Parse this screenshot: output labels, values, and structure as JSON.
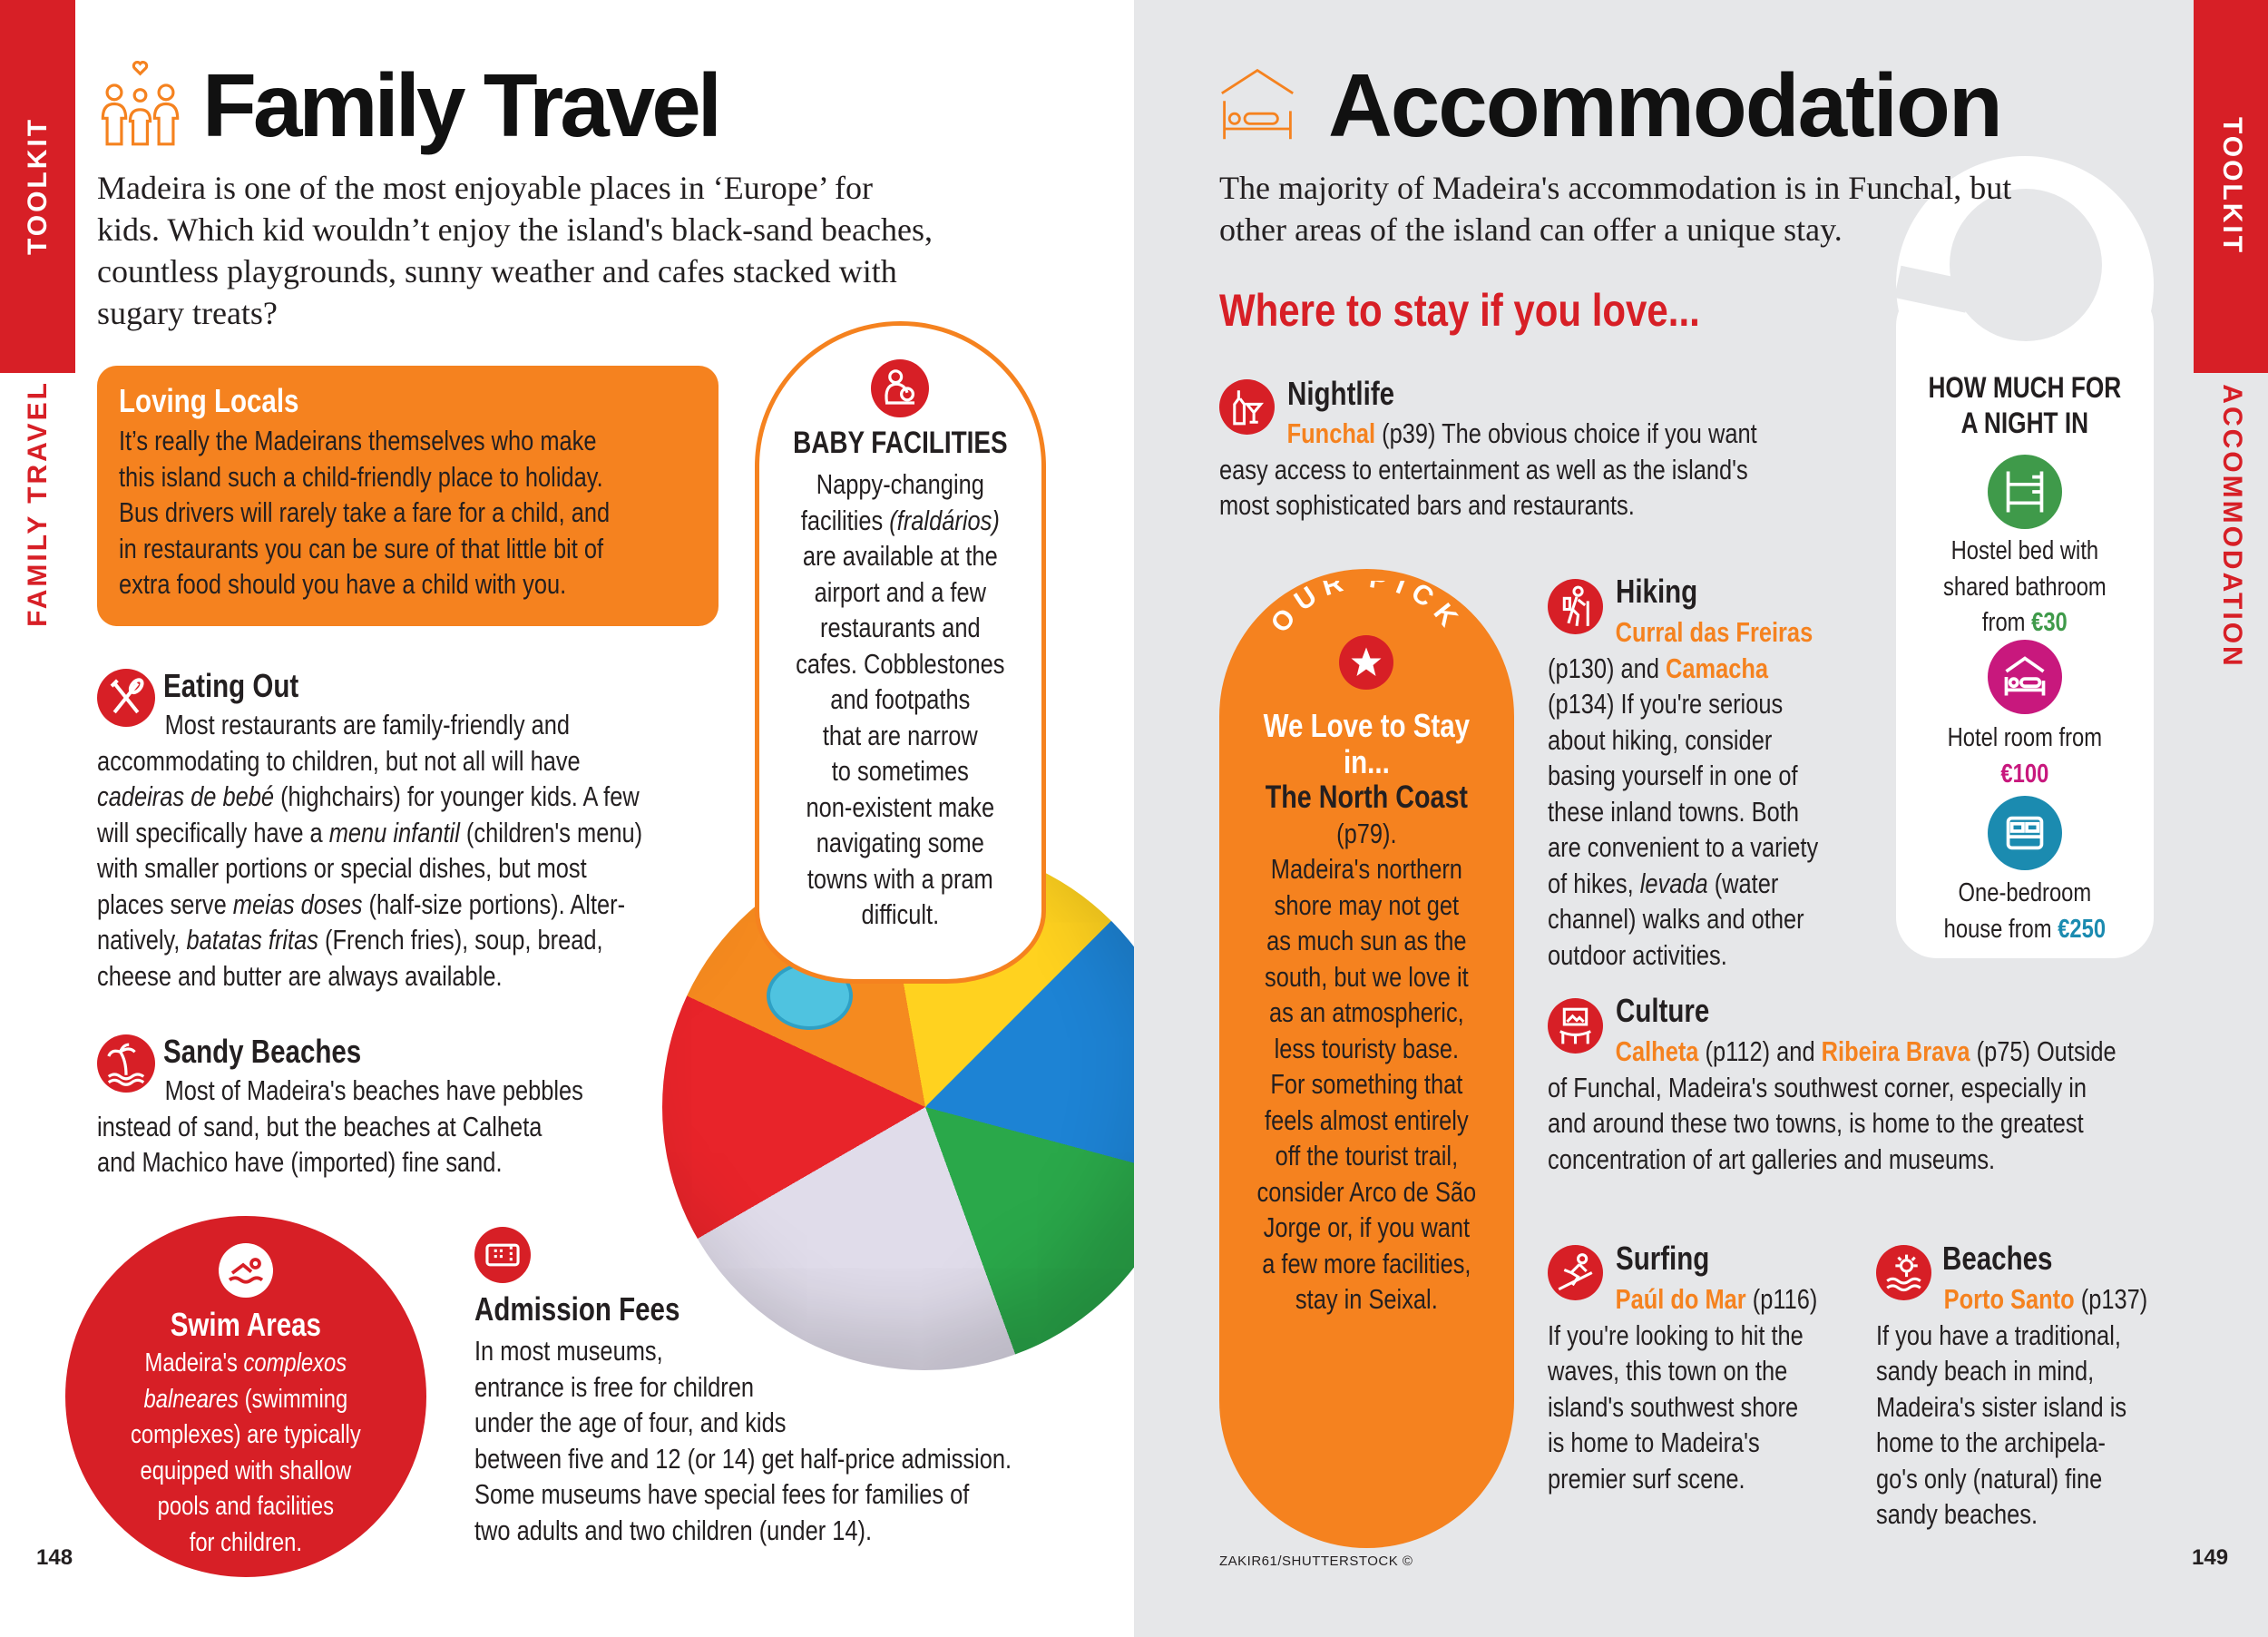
{
  "left_page": {
    "tab_label": "TOOLKIT",
    "section_label": "FAMILY TRAVEL",
    "title": "Family Travel",
    "title_icon": "family-icon",
    "intro": [
      "Madeira is one of the most enjoyable places in ‘Europe’ for",
      "kids. Which kid wouldn’t enjoy the island's black-sand beaches,",
      "countless playgrounds, sunny weather and cafes stacked with",
      "sugary treats?"
    ],
    "loving_locals": {
      "heading": "Loving Locals",
      "lines": [
        "It’s really the Madeirans themselves who make",
        "this island such a child-friendly place to holiday.",
        "Bus drivers will rarely take a fare for a child, and",
        "in restaurants you can be sure of that little bit of",
        "extra food should you have a child with you."
      ]
    },
    "baby_facilities": {
      "icon": "baby-icon",
      "heading": "BABY FACILITIES",
      "lines": [
        "Nappy-changing",
        [
          "facilities ",
          {
            "t": "(fraldários)",
            "s": "i"
          }
        ],
        "are available at the",
        "airport and a few",
        "restaurants and",
        "cafes. Cobblestones",
        "and footpaths",
        "that are narrow",
        "to sometimes",
        "non-existent make",
        "navigating some",
        "towns with a pram",
        "difficult."
      ]
    },
    "eating_out": {
      "icon": "cutlery-icon",
      "heading": "Eating Out",
      "lines": [
        "Most restaurants are family-friendly and",
        "accommodating to children, but not all will have",
        [
          {
            "t": "cadeiras de bebé",
            "s": "i"
          },
          " (highchairs) for younger kids. A few"
        ],
        [
          "will specifically have a ",
          {
            "t": "menu infantil",
            "s": "i"
          },
          " (children's menu)"
        ],
        "with smaller portions or special dishes, but most",
        [
          "places serve ",
          {
            "t": "meias doses",
            "s": "i"
          },
          " (half-size portions). Alter-"
        ],
        [
          "natively, ",
          {
            "t": "batatas fritas",
            "s": "i"
          },
          " (French fries), soup, bread,"
        ],
        "cheese and butter are always available."
      ]
    },
    "sandy_beaches": {
      "icon": "palm-beach-icon",
      "heading": "Sandy Beaches",
      "lines": [
        "Most of Madeira's beaches have pebbles",
        "instead of sand, but the beaches at Calheta",
        "and Machico have (imported) fine sand."
      ]
    },
    "swim_areas": {
      "icon": "swimmer-icon",
      "heading": "Swim Areas",
      "lines": [
        [
          "Madeira's ",
          {
            "t": "complexos",
            "s": "i"
          }
        ],
        [
          {
            "t": "balneares",
            "s": "i"
          },
          " (swimming"
        ],
        "complexes) are typically",
        "equipped with shallow",
        "pools and facilities",
        "for children."
      ]
    },
    "admission_fees": {
      "icon": "ticket-icon",
      "heading": "Admission Fees",
      "lines": [
        "In most museums,",
        "entrance is free for children",
        "under the age of four, and kids",
        "between five and 12 (or 14) get half-price admission.",
        "Some museums have special fees for families of",
        "two adults and two children (under 14)."
      ]
    },
    "page_number": "148"
  },
  "right_page": {
    "tab_label": "TOOLKIT",
    "section_label": "ACCOMMODATION",
    "title": "Accommodation",
    "title_icon": "house-bed-icon",
    "intro": [
      "The majority of Madeira's accommodation is in Funchal, but",
      "other areas of the island can offer a unique stay."
    ],
    "subheading": "Where to stay if you love...",
    "nightlife": {
      "icon": "wine-glass-icon",
      "heading": "Nightlife",
      "lines": [
        [
          {
            "t": "Funchal",
            "s": "o"
          },
          " (p39) The obvious choice if you want"
        ],
        "easy access to entertainment as well as the island's",
        "most sophisticated bars and restaurants."
      ]
    },
    "our_pick": {
      "badge": "OUR PICK",
      "icon": "star-icon",
      "heading_lines": [
        "We Love to Stay",
        "in..."
      ],
      "place": "The North Coast",
      "lines": [
        "(p79).",
        "Madeira's northern",
        "shore may not get",
        "as much sun as the",
        "south, but we love it",
        "as an atmospheric,",
        "less touristy base.",
        "For something that",
        "feels almost entirely",
        "off the tourist trail,",
        "consider Arco de São",
        "Jorge or, if you want",
        "a few more facilities,",
        "stay in Seixal."
      ]
    },
    "hiking": {
      "icon": "hiker-icon",
      "heading": "Hiking",
      "lines": [
        [
          {
            "t": "Curral das Freiras",
            "s": "o"
          }
        ],
        [
          "(p130) and ",
          {
            "t": "Camacha",
            "s": "o"
          }
        ],
        "(p134) If you're serious",
        "about hiking, consider",
        "basing yourself in one of",
        "these inland towns. Both",
        "are convenient to a variety",
        [
          "of hikes, ",
          {
            "t": "levada",
            "s": "i"
          },
          " (water"
        ],
        "channel) walks and other",
        "outdoor activities."
      ]
    },
    "culture": {
      "icon": "gallery-icon",
      "heading": "Culture",
      "lines": [
        [
          {
            "t": "Calheta",
            "s": "o"
          },
          " (p112) and ",
          {
            "t": "Ribeira Brava",
            "s": "o"
          },
          " (p75) Outside"
        ],
        "of Funchal, Madeira's southwest corner, especially in",
        "and around these two towns, is home to the greatest",
        "concentration of art galleries and museums."
      ]
    },
    "surfing": {
      "icon": "surfer-icon",
      "heading": "Surfing",
      "lines": [
        [
          {
            "t": "Paúl do Mar",
            "s": "o"
          },
          " (p116)"
        ],
        "If you're looking to hit the",
        "waves, this town on the",
        "island's southwest shore",
        "is home to Madeira's",
        "premier surf scene."
      ]
    },
    "beaches": {
      "icon": "sun-waves-icon",
      "heading": "Beaches",
      "lines": [
        [
          {
            "t": "Porto Santo",
            "s": "o"
          },
          " (p137)"
        ],
        "If you have a traditional,",
        "sandy beach in mind,",
        "Madeira's sister island is",
        "home to the archipela-",
        "go's only (natural) fine",
        "sandy beaches."
      ]
    },
    "price_hanger": {
      "heading_lines": [
        "HOW MUCH FOR",
        "A NIGHT IN"
      ],
      "items": [
        {
          "icon": "bunk-bed-icon",
          "color": "#3f9a4a",
          "lines": [
            "Hostel bed with",
            "shared bathroom",
            [
              "from ",
              {
                "t": "€30",
                "s": "g"
              }
            ]
          ]
        },
        {
          "icon": "hotel-bed-icon",
          "color": "#c8187d",
          "lines": [
            "Hotel room from",
            [
              {
                "t": "€100",
                "s": "p"
              }
            ]
          ]
        },
        {
          "icon": "double-bed-icon",
          "color": "#1b8bb0",
          "lines": [
            "One-bedroom",
            [
              "house from ",
              {
                "t": "€250",
                "s": "u"
              }
            ]
          ]
        }
      ]
    },
    "photo_credit": "ZAKIR61/SHUTTERSTOCK ©",
    "page_number": "149"
  },
  "colors": {
    "accent_red": "#d71f26",
    "accent_orange": "#f5821f",
    "right_page_bg": "#e6e7e9"
  }
}
